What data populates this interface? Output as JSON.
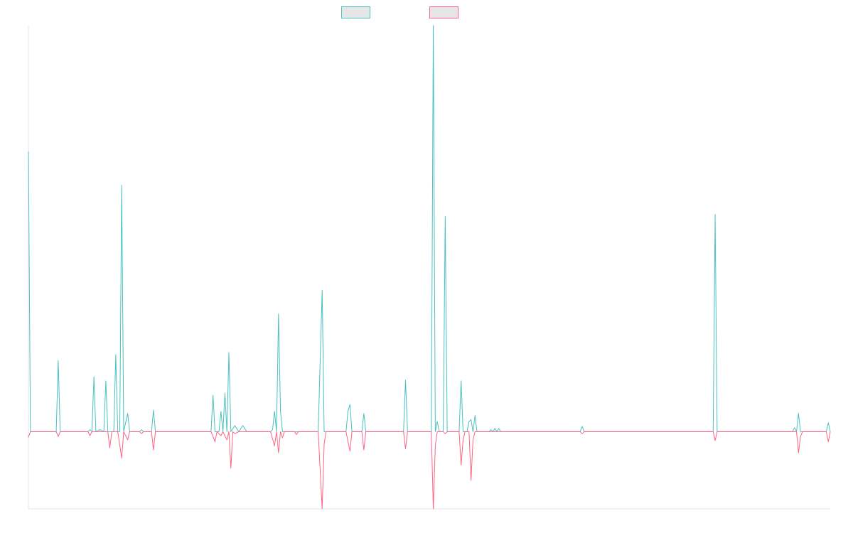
{
  "chart_data": {
    "type": "line",
    "title": "",
    "xlabel": "",
    "ylabel": "",
    "grid": false,
    "legend_position": "top-center",
    "ylim": [
      -0.19,
      1.0
    ],
    "series": [
      {
        "name": "",
        "color": "#4bc0c0",
        "fill": "#e6e6e6",
        "points": [
          [
            0,
            0.69
          ],
          [
            0.5,
            0.0
          ],
          [
            2,
            0.0
          ],
          [
            3.5,
            0.0
          ],
          [
            7,
            0.0
          ],
          [
            7.5,
            0.175
          ],
          [
            8,
            0.0
          ],
          [
            15,
            0.0
          ],
          [
            15.5,
            0.005
          ],
          [
            16,
            0.0
          ],
          [
            16.5,
            0.135
          ],
          [
            17,
            0.0
          ],
          [
            18,
            0.005
          ],
          [
            19,
            0.0
          ],
          [
            19.5,
            0.125
          ],
          [
            20,
            0.0
          ],
          [
            21.5,
            0.0
          ],
          [
            22,
            0.19
          ],
          [
            22.5,
            0.0
          ],
          [
            23,
            0.0
          ],
          [
            23.5,
            0.607
          ],
          [
            24,
            0.0
          ],
          [
            25,
            0.045
          ],
          [
            25.5,
            0.0
          ],
          [
            28,
            0.0
          ],
          [
            28.5,
            0.005
          ],
          [
            29,
            0.0
          ],
          [
            31,
            0.0
          ],
          [
            31.5,
            0.053
          ],
          [
            32,
            0.0
          ],
          [
            46,
            0.0
          ],
          [
            46.5,
            0.09
          ],
          [
            47,
            0.0
          ],
          [
            48,
            0.0
          ],
          [
            48.5,
            0.05
          ],
          [
            49,
            0.0
          ],
          [
            49.5,
            0.095
          ],
          [
            50,
            0.0
          ],
          [
            50.5,
            0.195
          ],
          [
            51,
            0.0
          ],
          [
            52,
            0.015
          ],
          [
            53,
            0.0
          ],
          [
            54,
            0.015
          ],
          [
            55,
            0.0
          ],
          [
            61,
            0.0
          ],
          [
            61.5,
            0.005
          ],
          [
            62,
            0.05
          ],
          [
            62.5,
            0.0
          ],
          [
            63,
            0.29
          ],
          [
            63.5,
            0.05
          ],
          [
            64,
            0.0
          ],
          [
            67,
            0.0
          ],
          [
            68,
            0.0
          ],
          [
            73,
            0.0
          ],
          [
            74,
            0.348
          ],
          [
            74.5,
            0.0
          ],
          [
            80,
            0.0
          ],
          [
            80.5,
            0.05
          ],
          [
            81,
            0.067
          ],
          [
            81.5,
            0.0
          ],
          [
            84,
            0.0
          ],
          [
            84.5,
            0.045
          ],
          [
            85,
            0.0
          ],
          [
            94.5,
            0.0
          ],
          [
            95,
            0.127
          ],
          [
            95.5,
            0.0
          ],
          [
            101.5,
            0.0
          ],
          [
            102,
            1.0
          ],
          [
            102.5,
            0.0
          ],
          [
            103,
            0.025
          ],
          [
            103.5,
            0.0
          ],
          [
            104.5,
            0.0
          ],
          [
            105,
            0.53
          ],
          [
            105.5,
            0.0
          ],
          [
            108.5,
            0.0
          ],
          [
            109,
            0.125
          ],
          [
            109.5,
            0.0
          ],
          [
            110.5,
            0.0
          ],
          [
            111,
            0.025
          ],
          [
            111.5,
            0.03
          ],
          [
            112,
            0.0
          ],
          [
            112.5,
            0.04
          ],
          [
            113,
            0.0
          ],
          [
            116,
            0.0
          ],
          [
            116.5,
            0.005
          ],
          [
            117,
            0.0
          ],
          [
            117.5,
            0.008
          ],
          [
            118,
            0.0
          ],
          [
            118.5,
            0.008
          ],
          [
            119,
            0.0
          ],
          [
            139,
            0.0
          ],
          [
            139.5,
            0.013
          ],
          [
            140,
            0.0
          ],
          [
            172.5,
            0.0
          ],
          [
            173,
            0.535
          ],
          [
            173.5,
            0.0
          ],
          [
            192.5,
            0.0
          ],
          [
            193,
            0.01
          ],
          [
            193.5,
            0.0
          ],
          [
            194,
            0.045
          ],
          [
            194.5,
            0.0
          ],
          [
            201,
            0.0
          ],
          [
            201.5,
            0.022
          ],
          [
            202,
            0.0
          ]
        ]
      },
      {
        "name": "",
        "color": "#ff6384",
        "fill": "#e6e6e6",
        "points": [
          [
            0,
            -0.014
          ],
          [
            0.5,
            0.0
          ],
          [
            7,
            0.0
          ],
          [
            7.5,
            -0.012
          ],
          [
            8,
            0.0
          ],
          [
            15,
            0.0
          ],
          [
            15.5,
            -0.01
          ],
          [
            16,
            0.0
          ],
          [
            20,
            0.0
          ],
          [
            20.5,
            -0.04
          ],
          [
            21,
            0.0
          ],
          [
            22.5,
            0.0
          ],
          [
            23.5,
            -0.065
          ],
          [
            24,
            0.0
          ],
          [
            25,
            -0.02
          ],
          [
            25.5,
            0.0
          ],
          [
            28,
            0.0
          ],
          [
            28.5,
            -0.005
          ],
          [
            29,
            0.0
          ],
          [
            31,
            0.0
          ],
          [
            31.5,
            -0.045
          ],
          [
            32,
            0.0
          ],
          [
            46,
            0.0
          ],
          [
            47,
            -0.025
          ],
          [
            47.5,
            0.0
          ],
          [
            48.5,
            -0.01
          ],
          [
            49,
            0.0
          ],
          [
            50,
            -0.02
          ],
          [
            50.5,
            0.0
          ],
          [
            51,
            -0.09
          ],
          [
            51.5,
            0.0
          ],
          [
            52,
            -0.005
          ],
          [
            53,
            0.0
          ],
          [
            61,
            0.0
          ],
          [
            62,
            -0.035
          ],
          [
            62.5,
            0.0
          ],
          [
            63,
            -0.052
          ],
          [
            63.5,
            0.0
          ],
          [
            64,
            -0.015
          ],
          [
            64.5,
            0.0
          ],
          [
            67,
            0.0
          ],
          [
            67.5,
            -0.007
          ],
          [
            68,
            0.0
          ],
          [
            73,
            0.0
          ],
          [
            74,
            -0.19
          ],
          [
            74.5,
            -0.03
          ],
          [
            75,
            0.0
          ],
          [
            80,
            0.0
          ],
          [
            81,
            -0.048
          ],
          [
            81.5,
            0.0
          ],
          [
            84,
            0.0
          ],
          [
            84.5,
            -0.045
          ],
          [
            85,
            0.0
          ],
          [
            94.5,
            0.0
          ],
          [
            95,
            -0.042
          ],
          [
            95.5,
            0.0
          ],
          [
            101.5,
            0.0
          ],
          [
            102,
            -0.19
          ],
          [
            102.5,
            -0.035
          ],
          [
            103,
            0.0
          ],
          [
            104.5,
            0.0
          ],
          [
            105,
            -0.005
          ],
          [
            105.5,
            0.0
          ],
          [
            108.5,
            0.0
          ],
          [
            109,
            -0.082
          ],
          [
            109.5,
            -0.02
          ],
          [
            110,
            0.0
          ],
          [
            111,
            0.0
          ],
          [
            111.5,
            -0.12
          ],
          [
            112,
            -0.02
          ],
          [
            112.5,
            0.0
          ],
          [
            113,
            0.0
          ],
          [
            139,
            0.0
          ],
          [
            139.5,
            -0.005
          ],
          [
            140,
            0.0
          ],
          [
            172.5,
            0.0
          ],
          [
            173,
            -0.022
          ],
          [
            173.5,
            0.0
          ],
          [
            193.5,
            0.0
          ],
          [
            194,
            -0.052
          ],
          [
            194.5,
            -0.012
          ],
          [
            195,
            0.0
          ],
          [
            201,
            0.0
          ],
          [
            201.5,
            -0.025
          ],
          [
            202,
            0.0
          ]
        ]
      }
    ]
  }
}
